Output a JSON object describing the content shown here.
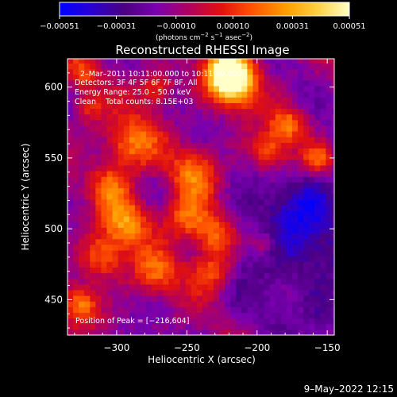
{
  "chart_data": {
    "type": "heatmap",
    "title": "Reconstructed RHESSI Image",
    "xlabel": "Heliocentric X (arcsec)",
    "ylabel": "Heliocentric Y (arcsec)",
    "xlim": [
      -335,
      -145
    ],
    "ylim": [
      425,
      620
    ],
    "x_ticks": [
      -300,
      -250,
      -200,
      -150
    ],
    "x_tick_labels": [
      "−300",
      "−250",
      "−200",
      "−150"
    ],
    "y_ticks": [
      450,
      500,
      550,
      600
    ],
    "y_tick_labels": [
      "450",
      "500",
      "550",
      "600"
    ],
    "colorbar": {
      "range": [
        -0.00051,
        0.00051
      ],
      "ticks": [
        -0.00051,
        -0.00031,
        -0.0001,
        0.0001,
        0.00031,
        0.00051
      ],
      "tick_labels": [
        "−0.00051",
        "−0.00031",
        "−0.00010",
        "0.00010",
        "0.00031",
        "0.00051"
      ],
      "units_html": "(photons cm<tspan dy='-4' font-size='7'>−2</tspan><tspan dy='4'> s</tspan><tspan dy='-4' font-size='7'>−1</tspan><tspan dy='4'> asec</tspan><tspan dy='-4' font-size='7'>−2</tspan><tspan dy='4'>)</tspan>",
      "colormap": [
        "#0000ff",
        "#2a00d0",
        "#4b0082",
        "#7a00b0",
        "#b00060",
        "#e01010",
        "#ff5500",
        "#ff9a00",
        "#ffd040",
        "#ffffc8"
      ]
    },
    "annotations": [
      "2–Mar–2011 10:11:00.000 to 10:11:40.000",
      "Detectors: 3F 4F 5F 6F 7F 8F, All",
      "Energy Range: 25.0 – 50.0 keV",
      "Clean    Total counts: 8.15E+03"
    ],
    "peak_label": "Position of Peak = [−216,604]",
    "peak": [
      -216,
      604
    ],
    "bright_regions": [
      {
        "x": -216,
        "y": 604,
        "amp": 1.0,
        "r": 12
      },
      {
        "x": -222,
        "y": 612,
        "amp": 0.85,
        "r": 9
      },
      {
        "x": -290,
        "y": 560,
        "amp": 0.55,
        "r": 14
      },
      {
        "x": -272,
        "y": 600,
        "amp": 0.45,
        "r": 9
      },
      {
        "x": -305,
        "y": 530,
        "amp": 0.45,
        "r": 10
      },
      {
        "x": -245,
        "y": 540,
        "amp": 0.5,
        "r": 12
      },
      {
        "x": -250,
        "y": 508,
        "amp": 0.55,
        "r": 12
      },
      {
        "x": -230,
        "y": 495,
        "amp": 0.5,
        "r": 10
      },
      {
        "x": -293,
        "y": 505,
        "amp": 0.6,
        "r": 12
      },
      {
        "x": -310,
        "y": 480,
        "amp": 0.5,
        "r": 11
      },
      {
        "x": -272,
        "y": 470,
        "amp": 0.45,
        "r": 12
      },
      {
        "x": -232,
        "y": 470,
        "amp": 0.5,
        "r": 11
      },
      {
        "x": -325,
        "y": 447,
        "amp": 0.55,
        "r": 9
      },
      {
        "x": -192,
        "y": 555,
        "amp": 0.45,
        "r": 10
      },
      {
        "x": -178,
        "y": 574,
        "amp": 0.5,
        "r": 9
      },
      {
        "x": -157,
        "y": 550,
        "amp": 0.45,
        "r": 8
      },
      {
        "x": -195,
        "y": 490,
        "amp": 0.3,
        "r": 7
      },
      {
        "x": -325,
        "y": 610,
        "amp": 0.4,
        "r": 8
      },
      {
        "x": -320,
        "y": 585,
        "amp": 0.35,
        "r": 8
      }
    ],
    "dark_regions": [
      {
        "x": -178,
        "y": 490,
        "amp": 0.45,
        "r": 30
      },
      {
        "x": -158,
        "y": 520,
        "amp": 0.35,
        "r": 15
      },
      {
        "x": -150,
        "y": 440,
        "amp": 0.3,
        "r": 12
      }
    ]
  },
  "footer": {
    "timestamp": "9–May–2022 12:15"
  }
}
